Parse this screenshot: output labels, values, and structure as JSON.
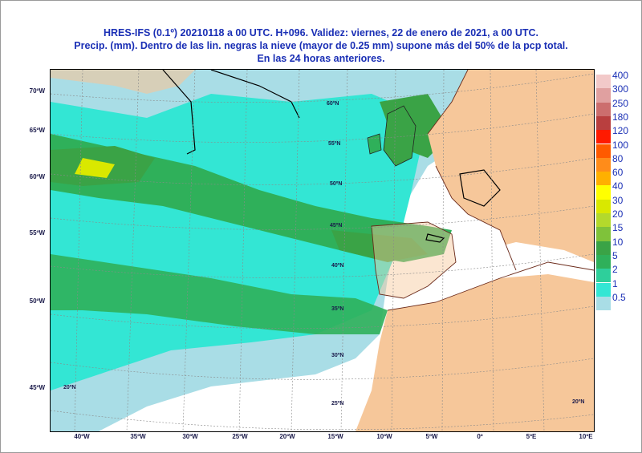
{
  "title": {
    "line1": "HRES-IFS (0.1º) 20210118 a 00 UTC.  H+096. Validez: viernes, 22 de enero de 2021,  a  00 UTC.",
    "line2": "Precip. (mm). Dentro de las lin. negras la nieve (mayor de 0.25 mm) supone más del 50% de la pcp total.",
    "line3": "En las 24 horas anteriores."
  },
  "lat_labels_left": [
    "70ºW",
    "65ºW",
    "60ºW",
    "55ºW",
    "50ºW",
    "45ºW"
  ],
  "lon_labels_bottom": [
    "40ºW",
    "35ºW",
    "30ºW",
    "25ºW",
    "20ºW",
    "15ºW",
    "10ºW",
    "5ºW",
    "0º",
    "5ºE",
    "10ºE"
  ],
  "map_grid_labels": [
    "60ºN",
    "55ºN",
    "50ºN",
    "45ºN",
    "40ºN",
    "35ºN",
    "30ºN",
    "25ºN",
    "20ºN",
    "20ºN"
  ],
  "legend": {
    "title": "",
    "labels": [
      "400",
      "300",
      "250",
      "180",
      "120",
      "100",
      "80",
      "60",
      "40",
      "30",
      "20",
      "15",
      "10",
      "5",
      "2",
      "1",
      "0.5"
    ],
    "colors": [
      "#f2c9c9",
      "#e0a0a0",
      "#cc6e6e",
      "#b93f3f",
      "#ff1a00",
      "#ff5a00",
      "#ff8c1a",
      "#ffb000",
      "#ffff00",
      "#d9e800",
      "#b3d92c",
      "#7fc23a",
      "#3aa346",
      "#2fb05a",
      "#2ecf9b",
      "#33e6d4",
      "#a9dde6"
    ]
  }
}
